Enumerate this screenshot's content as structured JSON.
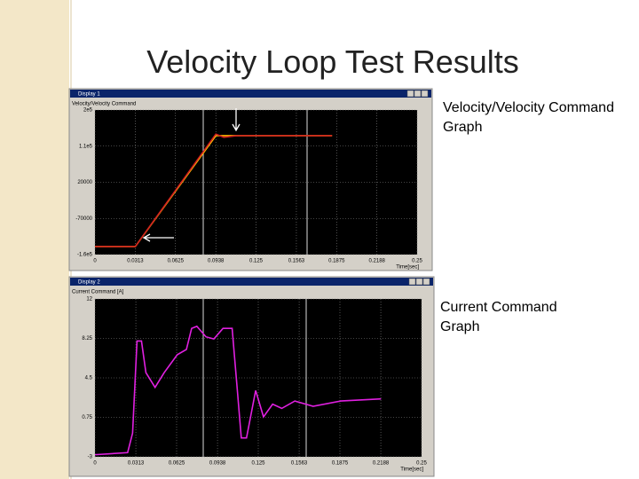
{
  "title": "Velocity Loop Test Results",
  "chart_data": [
    {
      "type": "line",
      "window_title": "Display 1",
      "title": "Velocity/Velocity Command",
      "caption": "Velocity/Velocity Command Graph",
      "xlabel": "Time[sec]",
      "x": [
        0,
        0.0313,
        0.0938,
        0.1,
        0.11,
        0.125,
        0.15,
        0.184
      ],
      "series": [
        {
          "color": "#ffc000",
          "values": [
            -140000,
            -140000,
            136000,
            136000,
            136000,
            136000,
            136000,
            136000
          ]
        },
        {
          "color": "#d02020",
          "values": [
            -140000,
            -140000,
            140000,
            132000,
            136000,
            136000,
            136000,
            136000
          ]
        }
      ],
      "xlim": [
        0,
        0.25
      ],
      "xticks": [
        0,
        0.0313,
        0.0625,
        0.0938,
        0.125,
        0.1563,
        0.1875,
        0.2188,
        0.25
      ],
      "ylim": [
        -160000,
        200000
      ],
      "yticks": [
        {
          "value": 200000,
          "label": "2e5"
        },
        {
          "value": 110000,
          "label": "1.1e5"
        },
        20000,
        -70000,
        {
          "value": -160000,
          "label": "-1.6e5"
        }
      ],
      "grid": true
    },
    {
      "type": "line",
      "window_title": "Display 2",
      "title": "Current Command [A]",
      "caption": "Current Command Graph",
      "xlabel": "Time[sec]",
      "x": [
        0,
        0.025,
        0.0288,
        0.0322,
        0.0356,
        0.039,
        0.046,
        0.053,
        0.063,
        0.07,
        0.074,
        0.078,
        0.085,
        0.091,
        0.098,
        0.105,
        0.109,
        0.112,
        0.116,
        0.123,
        0.129,
        0.136,
        0.143,
        0.153,
        0.167,
        0.188,
        0.219
      ],
      "series": [
        {
          "color": "#e020e0",
          "values": [
            -2.8,
            -2.6,
            -0.75,
            8,
            8,
            5,
            3.6,
            5,
            6.7,
            7.2,
            9.2,
            9.4,
            8.4,
            8.2,
            9.2,
            9.2,
            3.3,
            -1.2,
            -1.2,
            3.3,
            0.8,
            2,
            1.6,
            2.3,
            1.8,
            2.3,
            2.5
          ]
        }
      ],
      "xlim": [
        0,
        0.25
      ],
      "xticks": [
        0,
        0.0313,
        0.0625,
        0.0938,
        0.125,
        0.1563,
        0.1875,
        0.2188,
        0.25
      ],
      "ylim": [
        -3,
        12
      ],
      "yticks": [
        12,
        8.25,
        4.5,
        0.75,
        -3
      ],
      "grid": true
    }
  ]
}
